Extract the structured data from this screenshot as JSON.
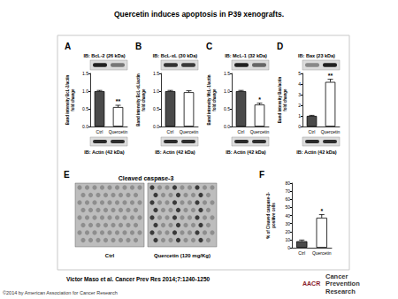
{
  "title": "Quercetin induces apoptosis in P39 xenografts.",
  "chart_data": [
    {
      "panel": "A",
      "type": "bar",
      "blot_label": "IB: BcL-2 (26 kDa)",
      "loading_label": "IB: Actin (42 kDa)",
      "ylabel": [
        "Band intensity BcL-2/actin",
        "fold change"
      ],
      "categories": [
        "Ctrl",
        "Quercetin"
      ],
      "values": [
        1.0,
        0.55
      ],
      "errors": [
        0.02,
        0.05
      ],
      "colors": [
        "#4a4a4a",
        "#ffffff"
      ],
      "annotations": [
        {
          "category": "Quercetin",
          "text": "**"
        }
      ],
      "ylim": [
        0,
        1.5
      ],
      "yticks": [
        {
          "value": 0,
          "label": "0.0"
        },
        {
          "value": 0.5,
          "label": "0.5"
        },
        {
          "value": 1,
          "label": "1.0"
        },
        {
          "value": 1.5,
          "label": "1.5"
        }
      ],
      "grid": false
    },
    {
      "panel": "B",
      "type": "bar",
      "blot_label": "IB: BcL-xL (30 kDa)",
      "loading_label": "IB: Actin (42 kDa)",
      "ylabel": [
        "Band intensity BcL-xL/actin",
        "fold change"
      ],
      "categories": [
        "Ctrl",
        "Quercetin"
      ],
      "values": [
        1.0,
        0.97
      ],
      "errors": [
        0.02,
        0.04
      ],
      "colors": [
        "#4a4a4a",
        "#ffffff"
      ],
      "annotations": [],
      "ylim": [
        0,
        1.5
      ],
      "yticks": [
        {
          "value": 0,
          "label": "0.0"
        },
        {
          "value": 0.5,
          "label": "0.5"
        },
        {
          "value": 1,
          "label": "1.0"
        },
        {
          "value": 1.5,
          "label": "1.5"
        }
      ],
      "grid": false
    },
    {
      "panel": "C",
      "type": "bar",
      "blot_label": "IB: McL-1 (32 kDa)",
      "loading_label": "IB: Actin (42 kDa)",
      "ylabel": [
        "Band intensity McL-1/actin",
        "fold change"
      ],
      "categories": [
        "Ctrl",
        "Quercetin"
      ],
      "values": [
        1.0,
        0.62
      ],
      "errors": [
        0.02,
        0.04
      ],
      "colors": [
        "#4a4a4a",
        "#ffffff"
      ],
      "annotations": [
        {
          "category": "Quercetin",
          "text": "*"
        }
      ],
      "ylim": [
        0,
        1.5
      ],
      "yticks": [
        {
          "value": 0,
          "label": "0.0"
        },
        {
          "value": 0.5,
          "label": "0.5"
        },
        {
          "value": 1,
          "label": "1.0"
        },
        {
          "value": 1.5,
          "label": "1.5"
        }
      ],
      "grid": false
    },
    {
      "panel": "D",
      "type": "bar",
      "blot_label": "IB: Bax (23 kDa)",
      "loading_label": "IB: Actin (42 kDa)",
      "ylabel": [
        "Band intensity Bax/actin",
        "fold change"
      ],
      "categories": [
        "Ctrl",
        "Quercetin"
      ],
      "values": [
        1.0,
        4.2
      ],
      "errors": [
        0.05,
        0.25
      ],
      "colors": [
        "#4a4a4a",
        "#ffffff"
      ],
      "annotations": [
        {
          "category": "Quercetin",
          "text": "**"
        }
      ],
      "ylim": [
        0,
        5
      ],
      "yticks": [
        0,
        1,
        2,
        3,
        4,
        5
      ],
      "grid": false
    },
    {
      "panel": "F",
      "type": "bar",
      "ylabel": [
        "% of Cleaved caspase-3-",
        "positive cells"
      ],
      "categories": [
        "Ctrl",
        "Quercetin"
      ],
      "values": [
        8,
        37
      ],
      "errors": [
        1.5,
        4
      ],
      "colors": [
        "#4a4a4a",
        "#ffffff"
      ],
      "annotations": [
        {
          "category": "Quercetin",
          "text": "*"
        }
      ],
      "ylim": [
        0,
        80
      ],
      "yticks": [
        0,
        10,
        20,
        30,
        40,
        50,
        60,
        70,
        80
      ],
      "grid": false
    }
  ],
  "panel_E": {
    "panel": "E",
    "title": "Cleaved caspase-3",
    "images": [
      "Ctrl",
      "Quercetin (120 mg/Kg)"
    ]
  },
  "citation": "Victor Maso et al. Cancer Prev Res 2014;7:1240-1250",
  "copyright": "©2014 by American Association for Cancer Research",
  "journal": [
    "Cancer",
    "Prevention",
    "Research"
  ],
  "logo": "AACR"
}
